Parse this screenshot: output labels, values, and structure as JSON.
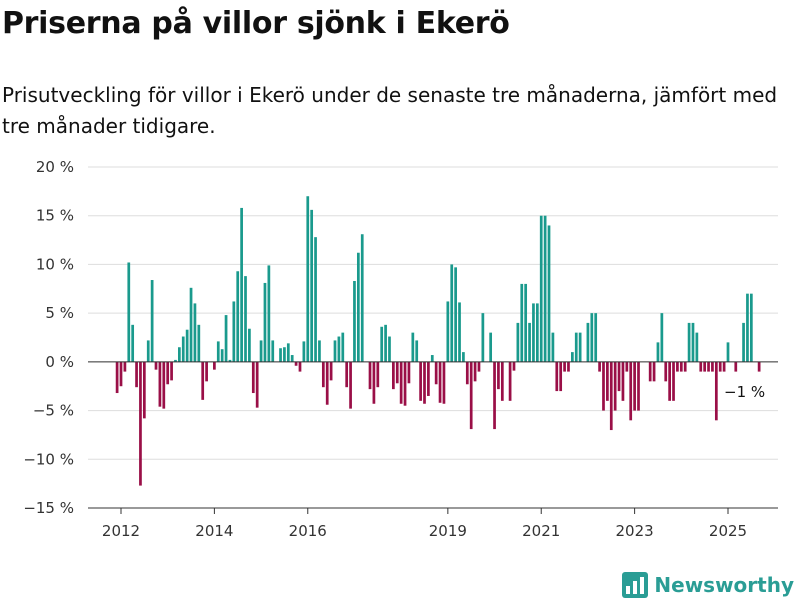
{
  "title": "Priserna på villor sjönk i Ekerö",
  "subtitle": "Prisutveckling för villor i Ekerö under de senaste tre månaderna, jämfört med tre månader tidigare.",
  "brand": "Newsworthy",
  "colors": {
    "positive": "#1a9a8d",
    "negative": "#9a0f47",
    "grid": "#dddddd",
    "axis": "#333333",
    "brand": "#2a9d95"
  },
  "chart_data": {
    "type": "bar",
    "title": "Priserna på villor sjönk i Ekerö",
    "xlabel": "",
    "ylabel": "",
    "ylim": [
      -15,
      20
    ],
    "yticks": [
      20,
      15,
      10,
      5,
      0,
      -5,
      -10,
      -15
    ],
    "ytick_labels": [
      "20 %",
      "15 %",
      "10 %",
      "5 %",
      "0 %",
      "−5 %",
      "−10 %",
      "−15 %"
    ],
    "xticks": [
      2012,
      2014,
      2016,
      2019,
      2021,
      2023,
      2025
    ],
    "xtick_labels": [
      "2012",
      "2014",
      "2016",
      "2019",
      "2021",
      "2023",
      "2025"
    ],
    "grid": true,
    "bar_start": "2011-12",
    "bar_interval": "month",
    "values": [
      -3.2,
      -2.5,
      -1.0,
      10.2,
      3.8,
      -2.6,
      -12.7,
      -5.8,
      2.2,
      8.4,
      -0.8,
      -4.6,
      -4.8,
      -2.3,
      -1.9,
      0.2,
      1.5,
      2.6,
      3.3,
      7.6,
      6.0,
      3.8,
      -3.9,
      -2.0,
      0.0,
      -0.8,
      2.1,
      1.3,
      4.8,
      0.2,
      6.2,
      9.3,
      15.8,
      8.8,
      3.4,
      -3.2,
      -4.7,
      2.2,
      8.1,
      9.9,
      2.2,
      0.0,
      1.4,
      1.5,
      1.9,
      0.7,
      -0.4,
      -1.0,
      2.1,
      17.0,
      15.6,
      12.8,
      2.2,
      -2.6,
      -4.4,
      -1.9,
      2.2,
      2.6,
      3.0,
      -2.6,
      -4.8,
      8.3,
      11.2,
      13.1,
      0.0,
      -2.8,
      -4.3,
      -2.6,
      3.6,
      3.8,
      2.6,
      -2.8,
      -2.2,
      -4.3,
      -4.5,
      -2.2,
      3.0,
      2.2,
      -4.0,
      -4.3,
      -3.5,
      0.7,
      -2.3,
      -4.2,
      -4.3,
      6.2,
      10.0,
      9.7,
      6.1,
      1.0,
      -2.3,
      -6.9,
      -2.0,
      -1.0,
      5.0,
      0.0,
      3.0,
      -6.9,
      -2.8,
      -4.0,
      0.0,
      -4.0,
      -0.9,
      4.0,
      8.0,
      8.0,
      4.0,
      6.0,
      6.0,
      15.0,
      15.0,
      14.0,
      3.0,
      -3.0,
      -3.0,
      -1.0,
      -1.0,
      1.0,
      3.0,
      3.0,
      0.0,
      4.0,
      5.0,
      5.0,
      -1.0,
      -5.0,
      -4.0,
      -7.0,
      -5.0,
      -3.0,
      -4.0,
      -1.0,
      -6.0,
      -5.0,
      -5.0,
      0.0,
      0.0,
      -2.0,
      -2.0,
      2.0,
      5.0,
      -2.0,
      -4.0,
      -4.0,
      -1.0,
      -1.0,
      -1.0,
      4.0,
      4.0,
      3.0,
      -1.0,
      -1.0,
      -1.0,
      -1.0,
      -6.0,
      -1.0,
      -1.0,
      2.0,
      0.0,
      -1.0,
      0.0,
      4.0,
      7.0,
      7.0,
      0.0,
      -1.0
    ],
    "annotation": "−1 %"
  }
}
